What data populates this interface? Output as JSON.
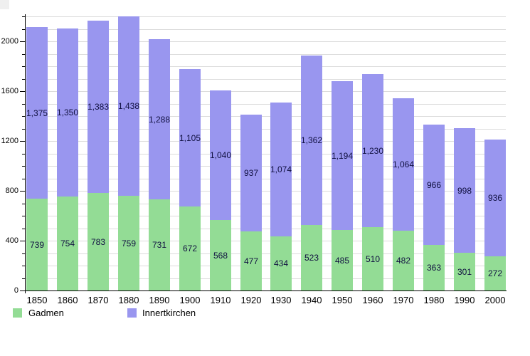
{
  "chart_data": {
    "type": "bar",
    "stacked": true,
    "title": "",
    "xlabel": "",
    "ylabel": "",
    "categories": [
      "1850",
      "1860",
      "1870",
      "1880",
      "1890",
      "1900",
      "1910",
      "1920",
      "1930",
      "1940",
      "1950",
      "1960",
      "1970",
      "1980",
      "1990",
      "2000"
    ],
    "series": [
      {
        "name": "Gadmen",
        "color": "#93dc95",
        "values": [
          739,
          754,
          783,
          759,
          731,
          672,
          568,
          477,
          434,
          523,
          485,
          510,
          482,
          363,
          301,
          272
        ]
      },
      {
        "name": "Innertkirchen",
        "color": "#9996ef",
        "values": [
          1375,
          1350,
          1383,
          1438,
          1288,
          1105,
          1040,
          937,
          1074,
          1362,
          1194,
          1230,
          1064,
          966,
          998,
          936
        ]
      }
    ],
    "ylim": [
      0,
      2200
    ],
    "yticks": [
      0,
      400,
      800,
      1200,
      1600,
      2000
    ],
    "ytick_labels": [
      "0",
      "400",
      "800",
      "1200",
      "1600",
      "2000"
    ],
    "minor_tick_step": 100,
    "grid": "on",
    "legend_position": "bottom",
    "value_labels_shown": true,
    "value_label_format": "thousands-comma"
  },
  "legend": {
    "items": [
      {
        "label": "Gadmen",
        "color": "#93dc95"
      },
      {
        "label": "Innertkirchen",
        "color": "#9996ef"
      }
    ]
  },
  "colors": {
    "axis": "#000000",
    "grid": "#dcdcdc",
    "value_label": "#101040",
    "background": "#ffffff",
    "corner_artifact": "#efefef"
  }
}
